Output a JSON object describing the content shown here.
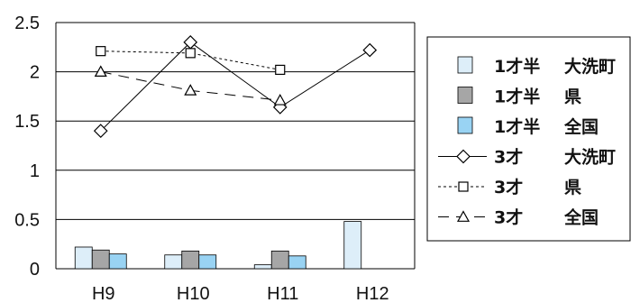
{
  "chart_data": {
    "type": "bar",
    "categories": [
      "H9",
      "H10",
      "H11",
      "H12"
    ],
    "ylim": [
      0,
      2.5
    ],
    "yticks": [
      "0",
      "0.5",
      "1",
      "1.5",
      "2",
      "2.5"
    ],
    "grid": true,
    "legend_position": "right",
    "bar_series": [
      {
        "name": "1才半 大洗町",
        "label_a": "1才半",
        "label_b": "大洗町",
        "color": "#ddeef9",
        "values": [
          0.22,
          0.14,
          0.04,
          0.48
        ]
      },
      {
        "name": "1才半 県",
        "label_a": "1才半",
        "label_b": "県",
        "color": "#a6a6a6",
        "values": [
          0.19,
          0.18,
          0.18,
          null
        ]
      },
      {
        "name": "1才半 全国",
        "label_a": "1才半",
        "label_b": "全国",
        "color": "#99d3f3",
        "values": [
          0.15,
          0.14,
          0.13,
          null
        ]
      }
    ],
    "line_series": [
      {
        "name": "3才 大洗町",
        "label_a": "3才",
        "label_b": "大洗町",
        "marker": "diamond",
        "dash": "",
        "values": [
          1.4,
          2.3,
          1.64,
          2.22
        ]
      },
      {
        "name": "3才 県",
        "label_a": "3才",
        "label_b": "県",
        "marker": "square",
        "dash": "3,3",
        "values": [
          2.21,
          2.19,
          2.02,
          null
        ]
      },
      {
        "name": "3才 全国",
        "label_a": "3才",
        "label_b": "全国",
        "marker": "triangle",
        "dash": "12,8",
        "values": [
          2.0,
          1.81,
          1.71,
          null
        ]
      }
    ]
  }
}
